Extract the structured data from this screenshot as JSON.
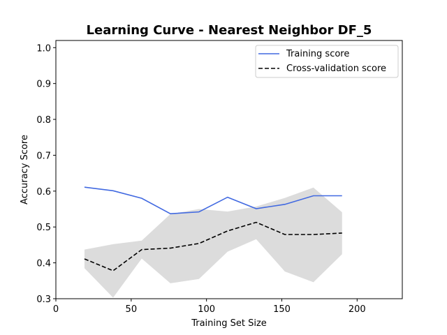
{
  "chart_data": {
    "type": "line",
    "title": "Learning Curve - Nearest Neighbor DF_5",
    "xlabel": "Training Set Size",
    "ylabel": "Accuracy Score",
    "xlim": [
      0,
      230
    ],
    "ylim": [
      0.3,
      1.02
    ],
    "xticks": [
      0,
      50,
      100,
      150,
      200
    ],
    "yticks": [
      0.3,
      0.4,
      0.5,
      0.6,
      0.7,
      0.8,
      0.9,
      1.0
    ],
    "x": [
      19,
      38,
      57,
      76,
      95,
      114,
      133,
      152,
      171,
      190
    ],
    "series": [
      {
        "name": "Training score",
        "color": "#4169e1",
        "style": "solid",
        "values": [
          0.611,
          0.601,
          0.58,
          0.537,
          0.542,
          0.583,
          0.551,
          0.563,
          0.587,
          0.587
        ]
      },
      {
        "name": "Cross-validation score",
        "color": "#000000",
        "style": "dashed",
        "values": [
          0.411,
          0.378,
          0.437,
          0.441,
          0.454,
          0.489,
          0.513,
          0.479,
          0.479,
          0.483
        ]
      }
    ],
    "band": {
      "color": "#dcdcdc",
      "upper": [
        0.437,
        0.452,
        0.462,
        0.536,
        0.55,
        0.543,
        0.557,
        0.581,
        0.61,
        0.541
      ],
      "lower": [
        0.385,
        0.303,
        0.412,
        0.343,
        0.355,
        0.431,
        0.466,
        0.376,
        0.346,
        0.424
      ]
    },
    "grid": false,
    "legend_position": "top-right"
  }
}
